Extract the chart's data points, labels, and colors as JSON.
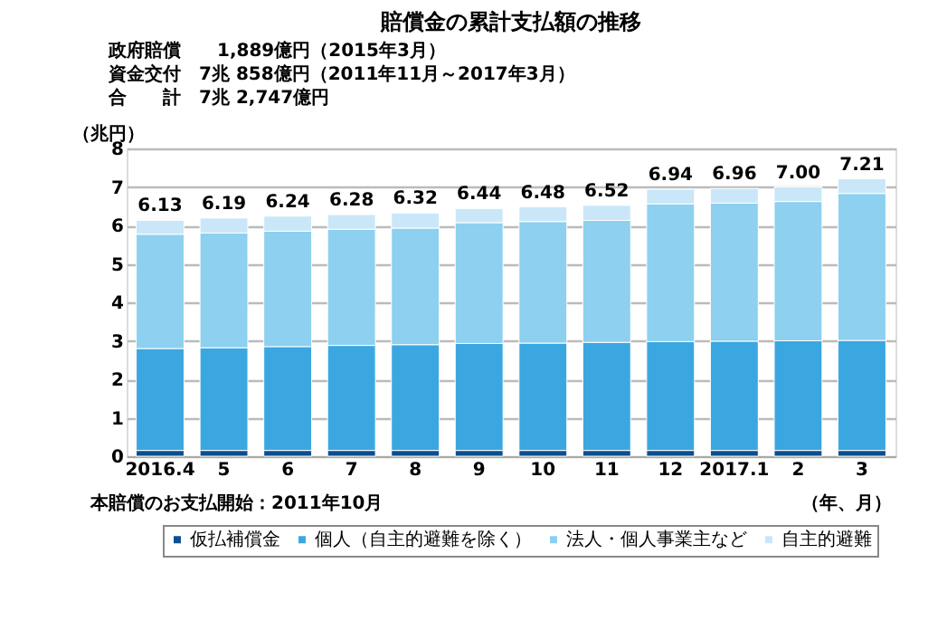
{
  "chart_data": {
    "type": "bar",
    "stacked": true,
    "title": "賠償金の累計支払額の推移",
    "ylabel": "（兆円）",
    "xlabel": "（年、月）",
    "annotations": [
      "政府賠償　　1,889億円（2015年3月）",
      "資金交付　7兆 858億円（2011年11月～2017年3月）",
      "合　　計　7兆 2,747億円",
      "本賠償のお支払開始：2011年10月"
    ],
    "categories": [
      "2016.4",
      "5",
      "6",
      "7",
      "8",
      "9",
      "10",
      "11",
      "12",
      "2017.1",
      "2",
      "3"
    ],
    "series": [
      {
        "name": "仮払補償金",
        "color": "#0b4f8e",
        "values": [
          0.15,
          0.15,
          0.15,
          0.15,
          0.15,
          0.15,
          0.15,
          0.15,
          0.15,
          0.15,
          0.15,
          0.15
        ]
      },
      {
        "name": "個人（自主的避難を除く）",
        "color": "#3ba7e1",
        "values": [
          2.65,
          2.67,
          2.7,
          2.73,
          2.75,
          2.78,
          2.79,
          2.81,
          2.83,
          2.84,
          2.85,
          2.86
        ]
      },
      {
        "name": "法人・個人事業主など",
        "color": "#8dd0f0",
        "values": [
          2.97,
          2.98,
          3.0,
          3.02,
          3.03,
          3.14,
          3.16,
          3.17,
          3.58,
          3.59,
          3.62,
          3.82
        ]
      },
      {
        "name": "自主的避難",
        "color": "#c9e7f8",
        "values": [
          0.36,
          0.39,
          0.39,
          0.38,
          0.39,
          0.37,
          0.38,
          0.39,
          0.38,
          0.38,
          0.38,
          0.38
        ]
      }
    ],
    "totals": [
      "6.13",
      "6.19",
      "6.24",
      "6.28",
      "6.32",
      "6.44",
      "6.48",
      "6.52",
      "6.94",
      "6.96",
      "7.00",
      "7.21"
    ],
    "ylim": [
      0,
      8
    ],
    "yticks": [
      0,
      1,
      2,
      3,
      4,
      5,
      6,
      7,
      8
    ],
    "grid": "y",
    "legend": "bottom"
  }
}
